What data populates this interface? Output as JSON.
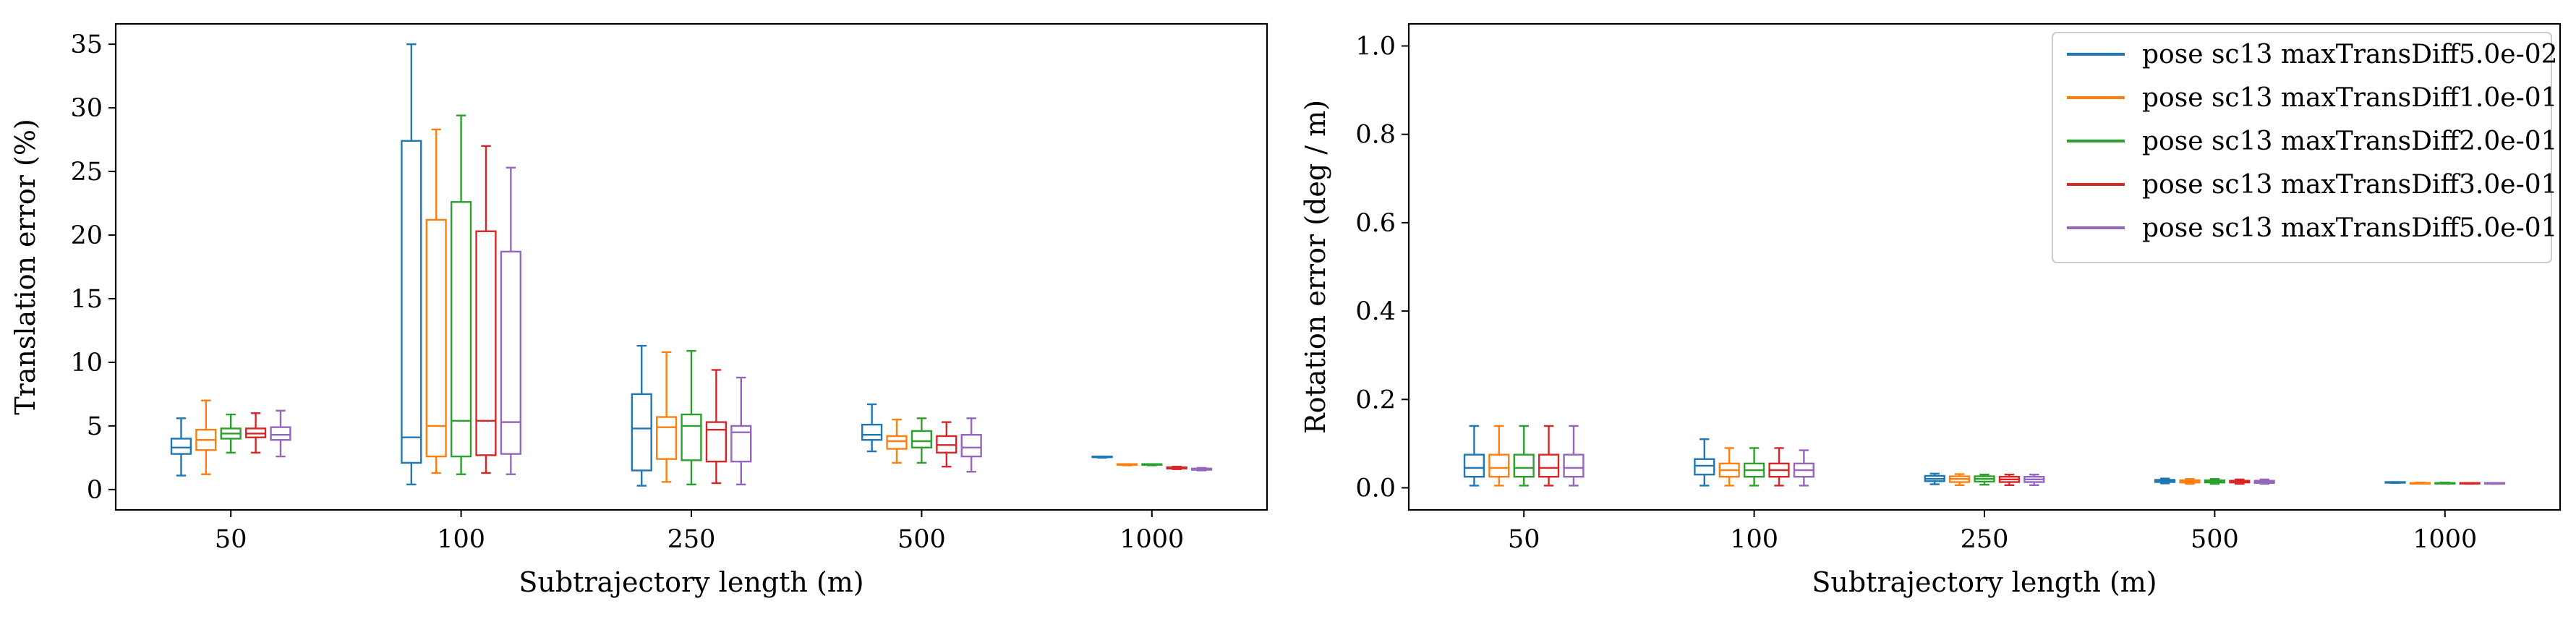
{
  "colors": {
    "series": [
      "#1f77b4",
      "#ff7f0e",
      "#2ca02c",
      "#d62728",
      "#9467bd"
    ],
    "axis": "#000000",
    "legend_border": "#cccccc"
  },
  "chart_data": [
    {
      "type": "boxplot",
      "title": "",
      "xlabel": "Subtrajectory length (m)",
      "ylabel": "Translation error (%)",
      "categories": [
        "50",
        "100",
        "250",
        "500",
        "1000"
      ],
      "ylim": [
        -1.6,
        36.6
      ],
      "yticks": [
        0,
        5,
        10,
        15,
        20,
        25,
        30,
        35
      ],
      "ytick_labels": [
        "0",
        "5",
        "10",
        "15",
        "20",
        "25",
        "30",
        "35"
      ],
      "legend": null,
      "series": [
        {
          "name": "pose sc13 maxTransDiff5.0e-02",
          "boxes": [
            {
              "whislo": 1.1,
              "q1": 2.8,
              "med": 3.3,
              "q3": 4.0,
              "whishi": 5.6
            },
            {
              "whislo": 0.4,
              "q1": 2.1,
              "med": 4.1,
              "q3": 27.4,
              "whishi": 35.0
            },
            {
              "whislo": 0.3,
              "q1": 1.5,
              "med": 4.8,
              "q3": 7.5,
              "whishi": 11.3
            },
            {
              "whislo": 3.0,
              "q1": 3.9,
              "med": 4.3,
              "q3": 5.1,
              "whishi": 6.7
            },
            {
              "whislo": 2.5,
              "q1": 2.55,
              "med": 2.55,
              "q3": 2.6,
              "whishi": 2.6
            }
          ]
        },
        {
          "name": "pose sc13 maxTransDiff1.0e-01",
          "boxes": [
            {
              "whislo": 1.2,
              "q1": 3.1,
              "med": 3.9,
              "q3": 4.7,
              "whishi": 7.0
            },
            {
              "whislo": 1.3,
              "q1": 2.6,
              "med": 5.0,
              "q3": 21.2,
              "whishi": 28.3
            },
            {
              "whislo": 0.6,
              "q1": 2.4,
              "med": 4.9,
              "q3": 5.7,
              "whishi": 10.8
            },
            {
              "whislo": 2.1,
              "q1": 3.2,
              "med": 3.8,
              "q3": 4.2,
              "whishi": 5.5
            },
            {
              "whislo": 1.9,
              "q1": 1.95,
              "med": 1.95,
              "q3": 2.0,
              "whishi": 2.0
            }
          ]
        },
        {
          "name": "pose sc13 maxTransDiff2.0e-01",
          "boxes": [
            {
              "whislo": 2.9,
              "q1": 4.0,
              "med": 4.4,
              "q3": 4.8,
              "whishi": 5.9
            },
            {
              "whislo": 1.2,
              "q1": 2.6,
              "med": 5.4,
              "q3": 22.6,
              "whishi": 29.4
            },
            {
              "whislo": 0.4,
              "q1": 2.3,
              "med": 5.0,
              "q3": 5.9,
              "whishi": 10.9
            },
            {
              "whislo": 2.1,
              "q1": 3.3,
              "med": 3.8,
              "q3": 4.6,
              "whishi": 5.6
            },
            {
              "whislo": 1.9,
              "q1": 1.95,
              "med": 1.95,
              "q3": 2.0,
              "whishi": 2.0
            }
          ]
        },
        {
          "name": "pose sc13 maxTransDiff3.0e-01",
          "boxes": [
            {
              "whislo": 2.9,
              "q1": 4.1,
              "med": 4.4,
              "q3": 4.8,
              "whishi": 6.0
            },
            {
              "whislo": 1.3,
              "q1": 2.7,
              "med": 5.4,
              "q3": 20.3,
              "whishi": 27.0
            },
            {
              "whislo": 0.5,
              "q1": 2.2,
              "med": 4.7,
              "q3": 5.3,
              "whishi": 9.4
            },
            {
              "whislo": 1.8,
              "q1": 2.9,
              "med": 3.5,
              "q3": 4.2,
              "whishi": 5.3
            },
            {
              "whislo": 1.6,
              "q1": 1.65,
              "med": 1.7,
              "q3": 1.75,
              "whishi": 1.8
            }
          ]
        },
        {
          "name": "pose sc13 maxTransDiff5.0e-01",
          "boxes": [
            {
              "whislo": 2.6,
              "q1": 3.9,
              "med": 4.3,
              "q3": 4.9,
              "whishi": 6.2
            },
            {
              "whislo": 1.2,
              "q1": 2.8,
              "med": 5.3,
              "q3": 18.7,
              "whishi": 25.3
            },
            {
              "whislo": 0.4,
              "q1": 2.2,
              "med": 4.5,
              "q3": 5.0,
              "whishi": 8.8
            },
            {
              "whislo": 1.4,
              "q1": 2.6,
              "med": 3.3,
              "q3": 4.3,
              "whishi": 5.6
            },
            {
              "whislo": 1.5,
              "q1": 1.55,
              "med": 1.6,
              "q3": 1.65,
              "whishi": 1.7
            }
          ]
        }
      ]
    },
    {
      "type": "boxplot",
      "title": "",
      "xlabel": "Subtrajectory length (m)",
      "ylabel": "Rotation error (deg / m)",
      "categories": [
        "50",
        "100",
        "250",
        "500",
        "1000"
      ],
      "ylim": [
        -0.05,
        1.05
      ],
      "yticks": [
        0.0,
        0.2,
        0.4,
        0.6,
        0.8,
        1.0
      ],
      "ytick_labels": [
        "0.0",
        "0.2",
        "0.4",
        "0.6",
        "0.8",
        "1.0"
      ],
      "legend": {
        "location": "upper right",
        "entries": [
          "pose sc13 maxTransDiff5.0e-02",
          "pose sc13 maxTransDiff1.0e-01",
          "pose sc13 maxTransDiff2.0e-01",
          "pose sc13 maxTransDiff3.0e-01",
          "pose sc13 maxTransDiff5.0e-01"
        ]
      },
      "series": [
        {
          "name": "pose sc13 maxTransDiff5.0e-02",
          "boxes": [
            {
              "whislo": 0.005,
              "q1": 0.025,
              "med": 0.045,
              "q3": 0.075,
              "whishi": 0.14
            },
            {
              "whislo": 0.005,
              "q1": 0.03,
              "med": 0.05,
              "q3": 0.065,
              "whishi": 0.11
            },
            {
              "whislo": 0.008,
              "q1": 0.015,
              "med": 0.02,
              "q3": 0.027,
              "whishi": 0.032
            },
            {
              "whislo": 0.01,
              "q1": 0.013,
              "med": 0.015,
              "q3": 0.018,
              "whishi": 0.021
            },
            {
              "whislo": 0.011,
              "q1": 0.012,
              "med": 0.012,
              "q3": 0.013,
              "whishi": 0.013
            }
          ]
        },
        {
          "name": "pose sc13 maxTransDiff1.0e-01",
          "boxes": [
            {
              "whislo": 0.005,
              "q1": 0.025,
              "med": 0.045,
              "q3": 0.075,
              "whishi": 0.14
            },
            {
              "whislo": 0.005,
              "q1": 0.025,
              "med": 0.04,
              "q3": 0.055,
              "whishi": 0.09
            },
            {
              "whislo": 0.006,
              "q1": 0.013,
              "med": 0.02,
              "q3": 0.026,
              "whishi": 0.031
            },
            {
              "whislo": 0.009,
              "q1": 0.012,
              "med": 0.014,
              "q3": 0.017,
              "whishi": 0.02
            },
            {
              "whislo": 0.01,
              "q1": 0.01,
              "med": 0.011,
              "q3": 0.011,
              "whishi": 0.012
            }
          ]
        },
        {
          "name": "pose sc13 maxTransDiff2.0e-01",
          "boxes": [
            {
              "whislo": 0.005,
              "q1": 0.025,
              "med": 0.045,
              "q3": 0.075,
              "whishi": 0.14
            },
            {
              "whislo": 0.005,
              "q1": 0.025,
              "med": 0.04,
              "q3": 0.055,
              "whishi": 0.09
            },
            {
              "whislo": 0.007,
              "q1": 0.014,
              "med": 0.02,
              "q3": 0.026,
              "whishi": 0.03
            },
            {
              "whislo": 0.009,
              "q1": 0.012,
              "med": 0.014,
              "q3": 0.017,
              "whishi": 0.02
            },
            {
              "whislo": 0.01,
              "q1": 0.01,
              "med": 0.011,
              "q3": 0.011,
              "whishi": 0.012
            }
          ]
        },
        {
          "name": "pose sc13 maxTransDiff3.0e-01",
          "boxes": [
            {
              "whislo": 0.005,
              "q1": 0.025,
              "med": 0.045,
              "q3": 0.075,
              "whishi": 0.14
            },
            {
              "whislo": 0.005,
              "q1": 0.025,
              "med": 0.04,
              "q3": 0.055,
              "whishi": 0.09
            },
            {
              "whislo": 0.006,
              "q1": 0.013,
              "med": 0.019,
              "q3": 0.025,
              "whishi": 0.03
            },
            {
              "whislo": 0.009,
              "q1": 0.012,
              "med": 0.014,
              "q3": 0.016,
              "whishi": 0.019
            },
            {
              "whislo": 0.009,
              "q1": 0.01,
              "med": 0.01,
              "q3": 0.011,
              "whishi": 0.011
            }
          ]
        },
        {
          "name": "pose sc13 maxTransDiff5.0e-01",
          "boxes": [
            {
              "whislo": 0.005,
              "q1": 0.025,
              "med": 0.045,
              "q3": 0.075,
              "whishi": 0.14
            },
            {
              "whislo": 0.005,
              "q1": 0.025,
              "med": 0.04,
              "q3": 0.055,
              "whishi": 0.085
            },
            {
              "whislo": 0.006,
              "q1": 0.013,
              "med": 0.019,
              "q3": 0.025,
              "whishi": 0.03
            },
            {
              "whislo": 0.009,
              "q1": 0.011,
              "med": 0.013,
              "q3": 0.016,
              "whishi": 0.019
            },
            {
              "whislo": 0.009,
              "q1": 0.01,
              "med": 0.01,
              "q3": 0.011,
              "whishi": 0.011
            }
          ]
        }
      ]
    }
  ]
}
